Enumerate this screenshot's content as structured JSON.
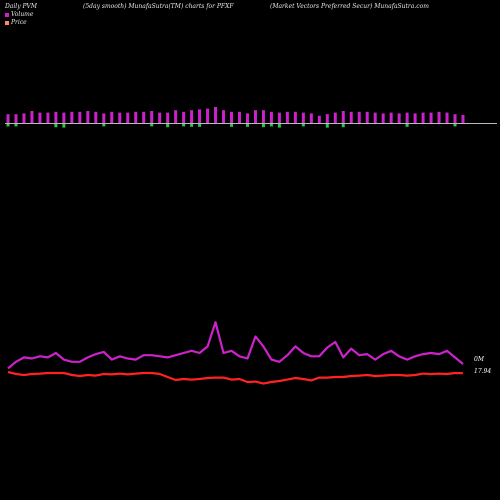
{
  "header": {
    "left": "Daily PVM",
    "center": "(5day smooth) MunafaSutra(TM) charts for PFXF",
    "right": "(Market Vectors Preferred Secur) MunafaSutra.com"
  },
  "legend": {
    "volume_label": "Volume",
    "price_label": "Price",
    "volume_color": "#cc22cc",
    "price_color": "#ff8888"
  },
  "labels": {
    "volume_end": "0M",
    "price_end": "17.94"
  },
  "chart_data": {
    "type": "line",
    "volume_bars": {
      "x": [
        1,
        2,
        3,
        4,
        5,
        6,
        7,
        8,
        9,
        10,
        11,
        12,
        13,
        14,
        15,
        16,
        17,
        18,
        19,
        20,
        21,
        22,
        23,
        24,
        25,
        26,
        27,
        28,
        29,
        30,
        31,
        32,
        33,
        34,
        35,
        36,
        37,
        38,
        39,
        40,
        41,
        42,
        43,
        44,
        45,
        46,
        47,
        48,
        49,
        50,
        51,
        52,
        53,
        54,
        55,
        56,
        57,
        58
      ],
      "up": [
        0.55,
        0.55,
        0.6,
        0.75,
        0.65,
        0.65,
        0.7,
        0.65,
        0.7,
        0.7,
        0.75,
        0.7,
        0.6,
        0.7,
        0.65,
        0.65,
        0.7,
        0.7,
        0.75,
        0.65,
        0.65,
        0.8,
        0.7,
        0.8,
        0.85,
        0.9,
        1.0,
        0.8,
        0.7,
        0.7,
        0.6,
        0.8,
        0.8,
        0.7,
        0.65,
        0.7,
        0.7,
        0.65,
        0.6,
        0.45,
        0.55,
        0.65,
        0.75,
        0.7,
        0.7,
        0.7,
        0.65,
        0.6,
        0.65,
        0.6,
        0.65,
        0.6,
        0.65,
        0.65,
        0.7,
        0.65,
        0.55,
        0.5
      ],
      "down": [
        0.3,
        0.3,
        0,
        0,
        0,
        0,
        0.4,
        0.45,
        0,
        0,
        0,
        0,
        0.3,
        0,
        0,
        0,
        0,
        0,
        0.3,
        0,
        0.4,
        0,
        0.3,
        0.35,
        0.35,
        0,
        0,
        0,
        0.35,
        0,
        0.35,
        0,
        0.4,
        0.3,
        0.45,
        0,
        0,
        0.3,
        0,
        0,
        0.45,
        0,
        0.4,
        0,
        0,
        0,
        0,
        0,
        0,
        0,
        0.35,
        0,
        0,
        0,
        0,
        0,
        0.3,
        0
      ]
    },
    "series": [
      {
        "name": "Volume",
        "color": "#cc22cc",
        "x": [
          1,
          2,
          3,
          4,
          5,
          6,
          7,
          8,
          9,
          10,
          11,
          12,
          13,
          14,
          15,
          16,
          17,
          18,
          19,
          20,
          21,
          22,
          23,
          24,
          25,
          26,
          27,
          28,
          29,
          30,
          31,
          32,
          33,
          34,
          35,
          36,
          37,
          38,
          39,
          40,
          41,
          42,
          43,
          44,
          45,
          46,
          47,
          48,
          49,
          50,
          51,
          52,
          53,
          54,
          55,
          56,
          57,
          58
        ],
        "values": [
          0.3,
          0.6,
          0.8,
          0.75,
          0.85,
          0.8,
          1.0,
          0.7,
          0.6,
          0.6,
          0.8,
          0.95,
          1.05,
          0.7,
          0.85,
          0.75,
          0.7,
          0.9,
          0.9,
          0.85,
          0.8,
          0.9,
          1.0,
          1.1,
          1.0,
          1.3,
          2.4,
          1.0,
          1.1,
          0.85,
          0.75,
          1.75,
          1.3,
          0.7,
          0.6,
          0.9,
          1.3,
          1.0,
          0.85,
          0.85,
          1.25,
          1.5,
          0.8,
          1.2,
          0.9,
          0.95,
          0.7,
          0.95,
          1.1,
          0.85,
          0.7,
          0.85,
          0.95,
          1.0,
          0.95,
          1.1,
          0.8,
          0.5
        ]
      },
      {
        "name": "Price",
        "color": "#ff2222",
        "x": [
          1,
          2,
          3,
          4,
          5,
          6,
          7,
          8,
          9,
          10,
          11,
          12,
          13,
          14,
          15,
          16,
          17,
          18,
          19,
          20,
          21,
          22,
          23,
          24,
          25,
          26,
          27,
          28,
          29,
          30,
          31,
          32,
          33,
          34,
          35,
          36,
          37,
          38,
          39,
          40,
          41,
          42,
          43,
          44,
          45,
          46,
          47,
          48,
          49,
          50,
          51,
          52,
          53,
          54,
          55,
          56,
          57,
          58
        ],
        "values": [
          18.0,
          17.9,
          17.85,
          17.9,
          17.92,
          17.95,
          17.95,
          17.95,
          17.85,
          17.8,
          17.85,
          17.82,
          17.9,
          17.88,
          17.92,
          17.88,
          17.92,
          17.95,
          17.95,
          17.9,
          17.75,
          17.6,
          17.65,
          17.62,
          17.65,
          17.7,
          17.72,
          17.72,
          17.62,
          17.65,
          17.5,
          17.52,
          17.42,
          17.5,
          17.55,
          17.62,
          17.7,
          17.65,
          17.58,
          17.72,
          17.72,
          17.75,
          17.75,
          17.8,
          17.82,
          17.85,
          17.8,
          17.82,
          17.85,
          17.85,
          17.82,
          17.85,
          17.92,
          17.9,
          17.92,
          17.9,
          17.95,
          17.94
        ]
      }
    ],
    "volume_range": [
      0,
      2.5
    ],
    "price_range": [
      17.0,
      18.5
    ],
    "grid": false,
    "legend_position": "top-left"
  }
}
